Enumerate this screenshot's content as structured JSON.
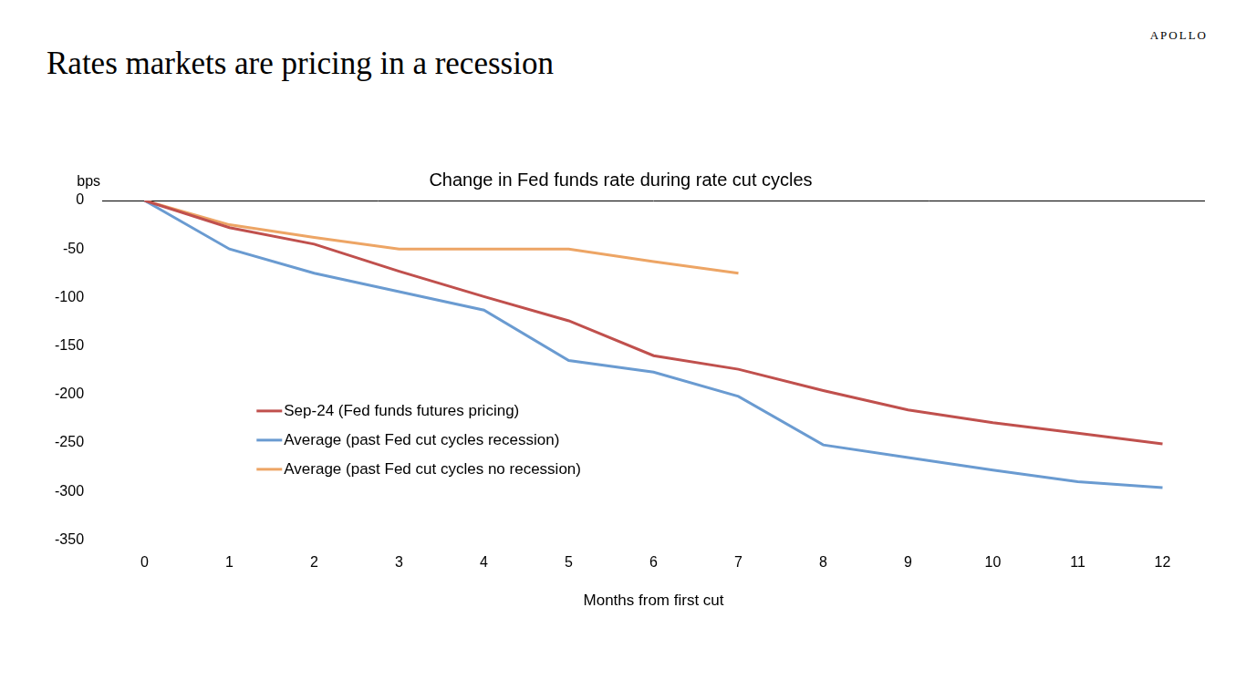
{
  "header": {
    "title": "Rates markets are pricing in a recession",
    "logo": "APOLLO"
  },
  "chart_data": {
    "type": "line",
    "title": "Change in Fed funds rate during rate cut cycles",
    "x_label": "Months from first cut",
    "y_label": "bps",
    "categories": [
      "0",
      "1",
      "2",
      "3",
      "4",
      "5",
      "6",
      "7",
      "8",
      "9",
      "10",
      "11",
      "12"
    ],
    "series": [
      {
        "name": "Sep-24 (Fed funds futures pricing)",
        "color": "#c0504d",
        "line_style": "solid",
        "values": [
          0,
          -28,
          -45,
          -73,
          -99,
          -124,
          -160,
          -174,
          -196,
          -216,
          -229,
          -240,
          -251
        ]
      },
      {
        "name": "Average (past Fed cut cycles recession)",
        "color": "#6a9bd1",
        "line_style": "solid",
        "values": [
          0,
          -50,
          -75,
          -94,
          -113,
          -165,
          -177,
          -202,
          -252,
          -265,
          -278,
          -290,
          -296
        ]
      },
      {
        "name": "Average (past Fed cut cycles no recession)",
        "color": "#eda565",
        "line_style": "solid",
        "values": [
          0,
          -25,
          -38,
          -50,
          -50,
          -50,
          -63,
          -75,
          null,
          null,
          null,
          null,
          null
        ]
      }
    ],
    "ylim": [
      -350,
      0
    ],
    "yticks": [
      -350,
      -300,
      -250,
      -200,
      -150,
      -100,
      -50,
      0
    ],
    "grid": false,
    "legend": "left"
  }
}
